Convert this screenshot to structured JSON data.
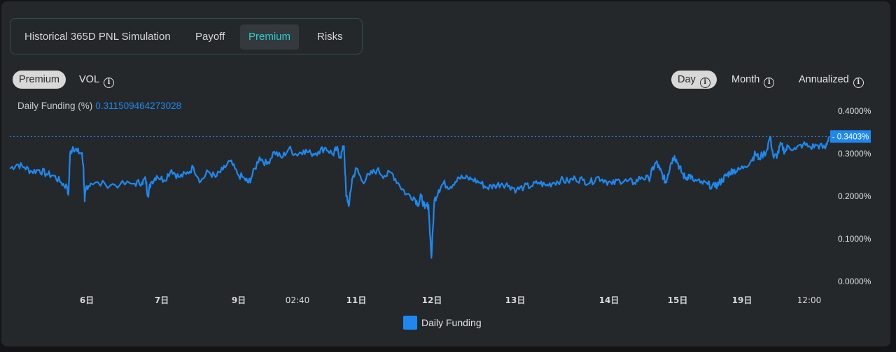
{
  "tabs": [
    {
      "label": "Historical 365D PNL Simulation",
      "active": false
    },
    {
      "label": "Payoff",
      "active": false
    },
    {
      "label": "Premium",
      "active": true
    },
    {
      "label": "Risks",
      "active": false
    }
  ],
  "toggles_left": {
    "premium": "Premium",
    "vol": "VOL"
  },
  "toggles_right": {
    "day": "Day",
    "month": "Month",
    "annualized": "Annualized"
  },
  "funding": {
    "label": "Daily Funding (%)",
    "value": "0.311509464273028"
  },
  "colors": {
    "line": "#1e88f0",
    "accent_tab": "#27cfcf",
    "panel": "#25282b"
  },
  "icons": {
    "info": "info-circle-icon"
  },
  "chart_data": {
    "type": "line",
    "series": [
      {
        "name": "Daily Funding",
        "color": "#1e88f0"
      }
    ],
    "ylabel_ticks": [
      "0.0000%",
      "0.1000%",
      "0.2000%",
      "0.3000%",
      "0.4000%"
    ],
    "ylim": [
      0,
      0.4
    ],
    "x_ticks": [
      "6日",
      "7日",
      "9日",
      "02:40",
      "11日",
      "12日",
      "13日",
      "14日",
      "15日",
      "19日",
      "12:00"
    ],
    "last_value_label": "0.3403%",
    "last_value": 0.3403,
    "points": [
      [
        0.0,
        0.265
      ],
      [
        0.01,
        0.275
      ],
      [
        0.02,
        0.268
      ],
      [
        0.03,
        0.258
      ],
      [
        0.04,
        0.262
      ],
      [
        0.05,
        0.252
      ],
      [
        0.06,
        0.248
      ],
      [
        0.07,
        0.232
      ],
      [
        0.078,
        0.222
      ],
      [
        0.08,
        0.205
      ],
      [
        0.082,
        0.298
      ],
      [
        0.086,
        0.316
      ],
      [
        0.092,
        0.305
      ],
      [
        0.098,
        0.3
      ],
      [
        0.1,
        0.275
      ],
      [
        0.102,
        0.188
      ],
      [
        0.104,
        0.222
      ],
      [
        0.11,
        0.23
      ],
      [
        0.13,
        0.228
      ],
      [
        0.15,
        0.227
      ],
      [
        0.17,
        0.23
      ],
      [
        0.18,
        0.233
      ],
      [
        0.185,
        0.24
      ],
      [
        0.188,
        0.202
      ],
      [
        0.192,
        0.232
      ],
      [
        0.2,
        0.248
      ],
      [
        0.21,
        0.238
      ],
      [
        0.22,
        0.262
      ],
      [
        0.23,
        0.245
      ],
      [
        0.24,
        0.252
      ],
      [
        0.25,
        0.268
      ],
      [
        0.26,
        0.235
      ],
      [
        0.27,
        0.258
      ],
      [
        0.28,
        0.245
      ],
      [
        0.29,
        0.262
      ],
      [
        0.3,
        0.282
      ],
      [
        0.31,
        0.252
      ],
      [
        0.32,
        0.24
      ],
      [
        0.325,
        0.232
      ],
      [
        0.33,
        0.248
      ],
      [
        0.34,
        0.292
      ],
      [
        0.35,
        0.275
      ],
      [
        0.36,
        0.305
      ],
      [
        0.37,
        0.29
      ],
      [
        0.38,
        0.312
      ],
      [
        0.39,
        0.298
      ],
      [
        0.4,
        0.308
      ],
      [
        0.41,
        0.3
      ],
      [
        0.42,
        0.305
      ],
      [
        0.43,
        0.314
      ],
      [
        0.44,
        0.298
      ],
      [
        0.445,
        0.312
      ],
      [
        0.45,
        0.292
      ],
      [
        0.455,
        0.318
      ],
      [
        0.458,
        0.2
      ],
      [
        0.462,
        0.18
      ],
      [
        0.466,
        0.24
      ],
      [
        0.472,
        0.265
      ],
      [
        0.48,
        0.235
      ],
      [
        0.49,
        0.25
      ],
      [
        0.5,
        0.262
      ],
      [
        0.51,
        0.248
      ],
      [
        0.52,
        0.255
      ],
      [
        0.53,
        0.228
      ],
      [
        0.54,
        0.205
      ],
      [
        0.55,
        0.198
      ],
      [
        0.556,
        0.182
      ],
      [
        0.56,
        0.2
      ],
      [
        0.565,
        0.172
      ],
      [
        0.57,
        0.18
      ],
      [
        0.574,
        0.055
      ],
      [
        0.578,
        0.19
      ],
      [
        0.584,
        0.215
      ],
      [
        0.59,
        0.23
      ],
      [
        0.6,
        0.222
      ],
      [
        0.61,
        0.245
      ],
      [
        0.62,
        0.242
      ],
      [
        0.63,
        0.24
      ],
      [
        0.64,
        0.232
      ],
      [
        0.65,
        0.22
      ],
      [
        0.66,
        0.225
      ],
      [
        0.67,
        0.23
      ],
      [
        0.68,
        0.225
      ],
      [
        0.69,
        0.215
      ],
      [
        0.7,
        0.222
      ],
      [
        0.71,
        0.224
      ],
      [
        0.72,
        0.232
      ],
      [
        0.73,
        0.225
      ],
      [
        0.74,
        0.232
      ],
      [
        0.75,
        0.238
      ],
      [
        0.76,
        0.235
      ],
      [
        0.77,
        0.242
      ],
      [
        0.78,
        0.238
      ],
      [
        0.79,
        0.232
      ],
      [
        0.8,
        0.245
      ],
      [
        0.81,
        0.238
      ],
      [
        0.82,
        0.228
      ],
      [
        0.83,
        0.238
      ],
      [
        0.84,
        0.235
      ],
      [
        0.85,
        0.232
      ],
      [
        0.86,
        0.245
      ],
      [
        0.87,
        0.24
      ],
      [
        0.875,
        0.262
      ],
      [
        0.88,
        0.28
      ],
      [
        0.885,
        0.262
      ],
      [
        0.89,
        0.245
      ],
      [
        0.893,
        0.232
      ],
      [
        0.896,
        0.252
      ],
      [
        0.9,
        0.278
      ],
      [
        0.905,
        0.295
      ],
      [
        0.91,
        0.275
      ],
      [
        0.915,
        0.255
      ],
      [
        0.92,
        0.242
      ],
      [
        0.925,
        0.25
      ],
      [
        0.93,
        0.238
      ],
      [
        0.94,
        0.232
      ],
      [
        0.95,
        0.228
      ],
      [
        0.96,
        0.222
      ],
      [
        0.965,
        0.23
      ],
      [
        0.97,
        0.238
      ],
      [
        0.975,
        0.248
      ],
      [
        0.98,
        0.255
      ],
      [
        0.985,
        0.262
      ],
      [
        0.99,
        0.258
      ],
      [
        1.0,
        0.27
      ],
      [
        1.01,
        0.285
      ],
      [
        1.015,
        0.3
      ],
      [
        1.02,
        0.29
      ],
      [
        1.03,
        0.305
      ],
      [
        1.035,
        0.34
      ],
      [
        1.04,
        0.29
      ],
      [
        1.045,
        0.298
      ],
      [
        1.05,
        0.322
      ],
      [
        1.055,
        0.305
      ],
      [
        1.06,
        0.318
      ],
      [
        1.07,
        0.31
      ],
      [
        1.08,
        0.322
      ],
      [
        1.09,
        0.315
      ],
      [
        1.1,
        0.32
      ],
      [
        1.11,
        0.312
      ],
      [
        1.115,
        0.34
      ]
    ]
  }
}
